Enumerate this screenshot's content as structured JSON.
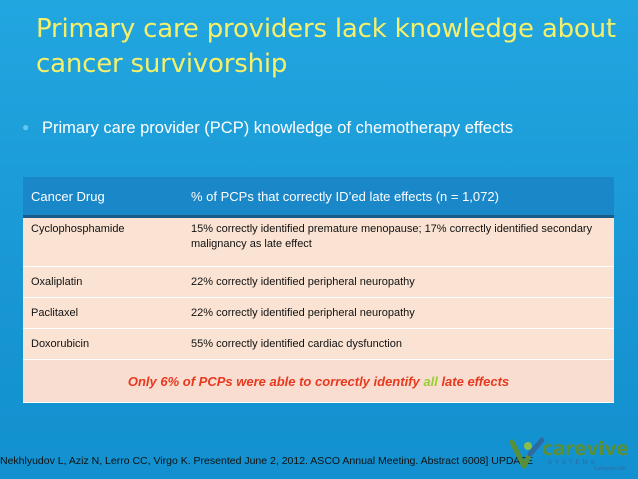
{
  "slide": {
    "title": "Primary care providers lack knowledge about cancer survivorship",
    "bullet": "Primary care provider (PCP) knowledge of chemotherapy effects"
  },
  "table": {
    "headers": [
      "Cancer Drug",
      "% of PCPs that correctly ID’ed late effects (n = 1,072)"
    ],
    "rows": [
      {
        "drug": "Cyclophosphamide",
        "result": "15% correctly identified premature menopause; 17% correctly identified secondary malignancy as late effect"
      },
      {
        "drug": "Oxaliplatin",
        "result": "22% correctly identified peripheral neuropathy"
      },
      {
        "drug": "Paclitaxel",
        "result": "22% correctly identified peripheral neuropathy"
      },
      {
        "drug": "Doxorubicin",
        "result": "55% correctly identified cardiac dysfunction"
      }
    ],
    "note_before": "Only 6% of PCPs were able to correctly identify ",
    "note_highlight": "all",
    "note_after": " late effects"
  },
  "footer": {
    "citation": "Nekhlyudov L, Aziz N, Lerro CC, Virgo K. Presented June 2, 2012. ASCO Annual Meeting. Abstract 6008] UPDATE"
  },
  "logo": {
    "name": "carevive",
    "sub": "SYSTEMS",
    "tagline": "Caring for Life",
    "colors": {
      "green": "#5a8f3a",
      "blue": "#2e6aa0"
    }
  },
  "colors": {
    "background": "#1a9ad6",
    "title": "#f5ef6a",
    "header_row": "#1a87c9",
    "body_row": "#fae3d3",
    "note_text": "#e8391e",
    "note_highlight": "#9acd32"
  }
}
